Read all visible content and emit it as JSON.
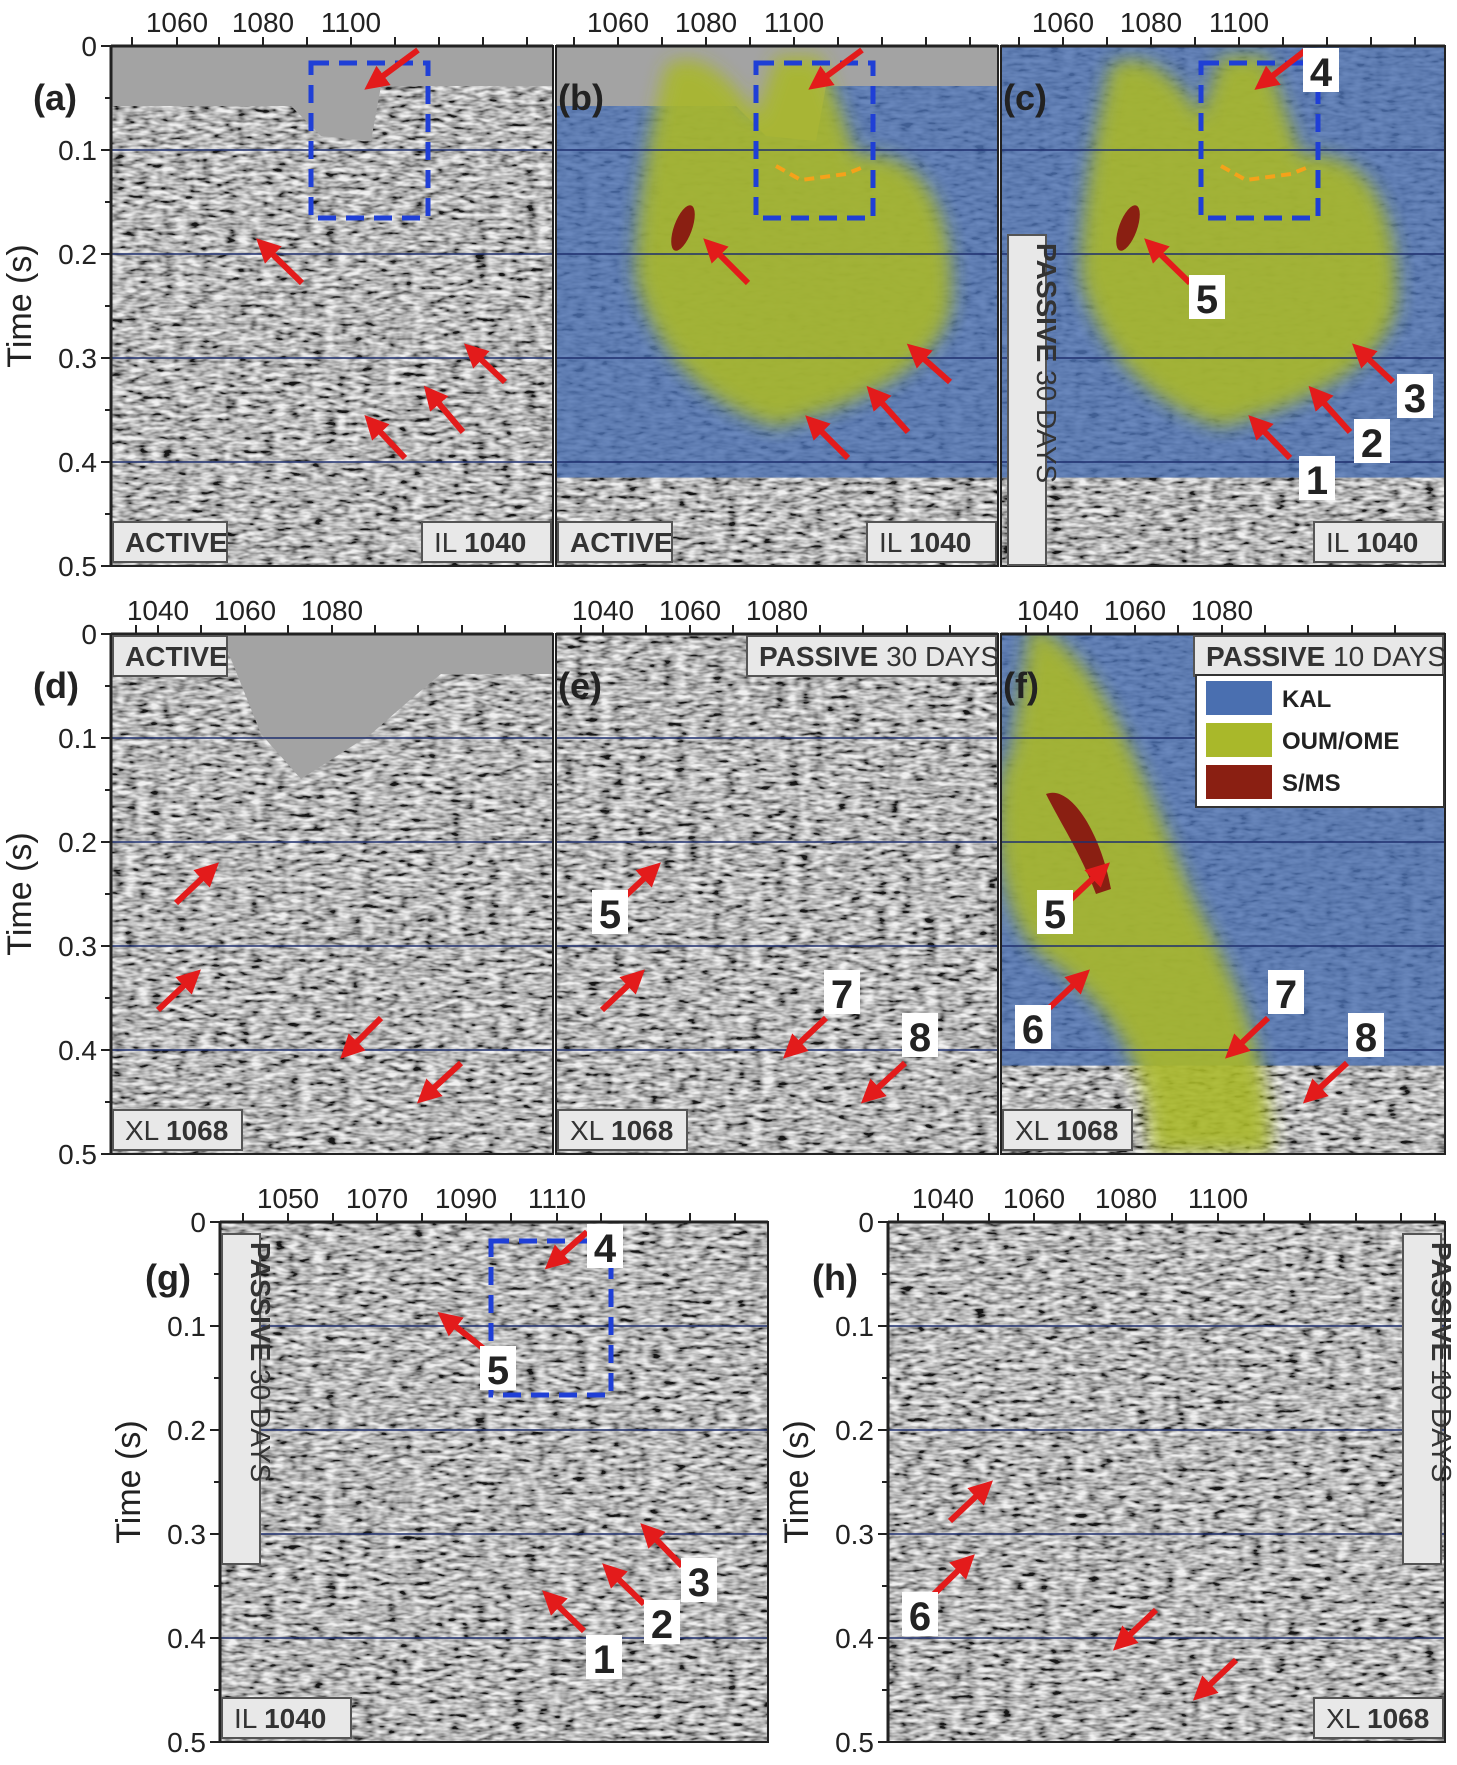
{
  "panels": [
    {
      "id": "a",
      "letter": "(a)",
      "xticks": [
        "1060",
        "1080",
        "1100"
      ],
      "show_yticks": true,
      "bg": "active_top",
      "tags": [
        {
          "text": "ACTIVE",
          "pos": "bl"
        },
        {
          "text": "IL 1040",
          "pos": "br",
          "bold_part": "1040"
        }
      ],
      "body": "none",
      "box": true,
      "numbers": [],
      "arrows": "a"
    },
    {
      "id": "b",
      "letter": "(b)",
      "xticks": [
        "1060",
        "1080",
        "1100"
      ],
      "show_yticks": false,
      "bg": "active_top",
      "tags": [
        {
          "text": "ACTIVE",
          "pos": "bl"
        },
        {
          "text": "IL 1040",
          "pos": "br",
          "bold_part": "1040"
        }
      ],
      "body": "blob_ab",
      "box": true,
      "numbers": [],
      "arrows": "b"
    },
    {
      "id": "c",
      "letter": "(c)",
      "xticks": [
        "1060",
        "1080",
        "1100"
      ],
      "show_yticks": false,
      "bg": "plain",
      "tags": [
        {
          "text": "IL 1040",
          "pos": "br",
          "bold_part": "1040"
        }
      ],
      "vtag": {
        "bold": "PASSIVE",
        "rest": " 30 DAYS"
      },
      "body": "blob_c",
      "box": true,
      "numbers": [
        "4",
        "5",
        "3",
        "2",
        "1"
      ],
      "arrows": "c"
    },
    {
      "id": "d",
      "letter": "(d)",
      "xticks": [
        "1040",
        "1060",
        "1080"
      ],
      "show_yticks": true,
      "bg": "active_top2",
      "tags": [
        {
          "text": "ACTIVE",
          "pos": "tl"
        },
        {
          "text": "XL 1068",
          "pos": "bl",
          "bold_part": "1068"
        }
      ],
      "body": "none",
      "box": false,
      "numbers": [],
      "arrows": "d"
    },
    {
      "id": "e",
      "letter": "(e)",
      "xticks": [
        "1040",
        "1060",
        "1080"
      ],
      "show_yticks": false,
      "bg": "plain",
      "tags": [
        {
          "text": "PASSIVE 30 DAYS",
          "pos": "tr",
          "bold_part": "PASSIVE"
        },
        {
          "text": "XL 1068",
          "pos": "bl",
          "bold_part": "1068"
        }
      ],
      "body": "none",
      "box": false,
      "numbers": [
        "5",
        "7",
        "8"
      ],
      "arrows": "e"
    },
    {
      "id": "f",
      "letter": "(f)",
      "xticks": [
        "1040",
        "1060",
        "1080"
      ],
      "show_yticks": false,
      "bg": "plain",
      "tags": [
        {
          "text": "PASSIVE 10 DAYS",
          "pos": "tr",
          "bold_part": "PASSIVE"
        },
        {
          "text": "XL 1068",
          "pos": "bl",
          "bold_part": "1068"
        }
      ],
      "body": "blob_f",
      "box": false,
      "numbers": [
        "5",
        "6",
        "7",
        "8"
      ],
      "arrows": "f",
      "legend": true
    },
    {
      "id": "g",
      "letter": "(g)",
      "xticks": [
        "1050",
        "1070",
        "1090",
        "1110"
      ],
      "show_yticks": true,
      "bg": "plain",
      "tags": [
        {
          "text": "IL 1040",
          "pos": "bl",
          "bold_part": "1040"
        }
      ],
      "vtag": {
        "bold": "PASSIVE",
        "rest": " 30 DAYS"
      },
      "body": "none",
      "box": true,
      "numbers": [
        "4",
        "5",
        "3",
        "2",
        "1"
      ],
      "arrows": "g"
    },
    {
      "id": "h",
      "letter": "(h)",
      "xticks": [
        "1040",
        "1060",
        "1080",
        "1100"
      ],
      "show_yticks": true,
      "bg": "plain",
      "tags": [
        {
          "text": "XL 1068",
          "pos": "br",
          "bold_part": "1068"
        }
      ],
      "vtag": {
        "bold": "PASSIVE",
        "rest": " 10 DAYS"
      },
      "body": "none",
      "box": false,
      "numbers": [
        "6"
      ],
      "arrows": "h"
    }
  ],
  "yticks": [
    "0",
    "0.1",
    "0.2",
    "0.3",
    "0.4",
    "0.5"
  ],
  "ylabel": "Time (s)",
  "legend": [
    {
      "label": "KAL",
      "color": "#4a6fb0"
    },
    {
      "label": "OUM/OME",
      "color": "#a9b82a"
    },
    {
      "label": "S/MS",
      "color": "#8a1f12"
    }
  ],
  "colors": {
    "arrow": "#e31b1b",
    "box": "#1f3fd6",
    "dash": "#f5a21a",
    "grid": "#1e2f6e"
  }
}
